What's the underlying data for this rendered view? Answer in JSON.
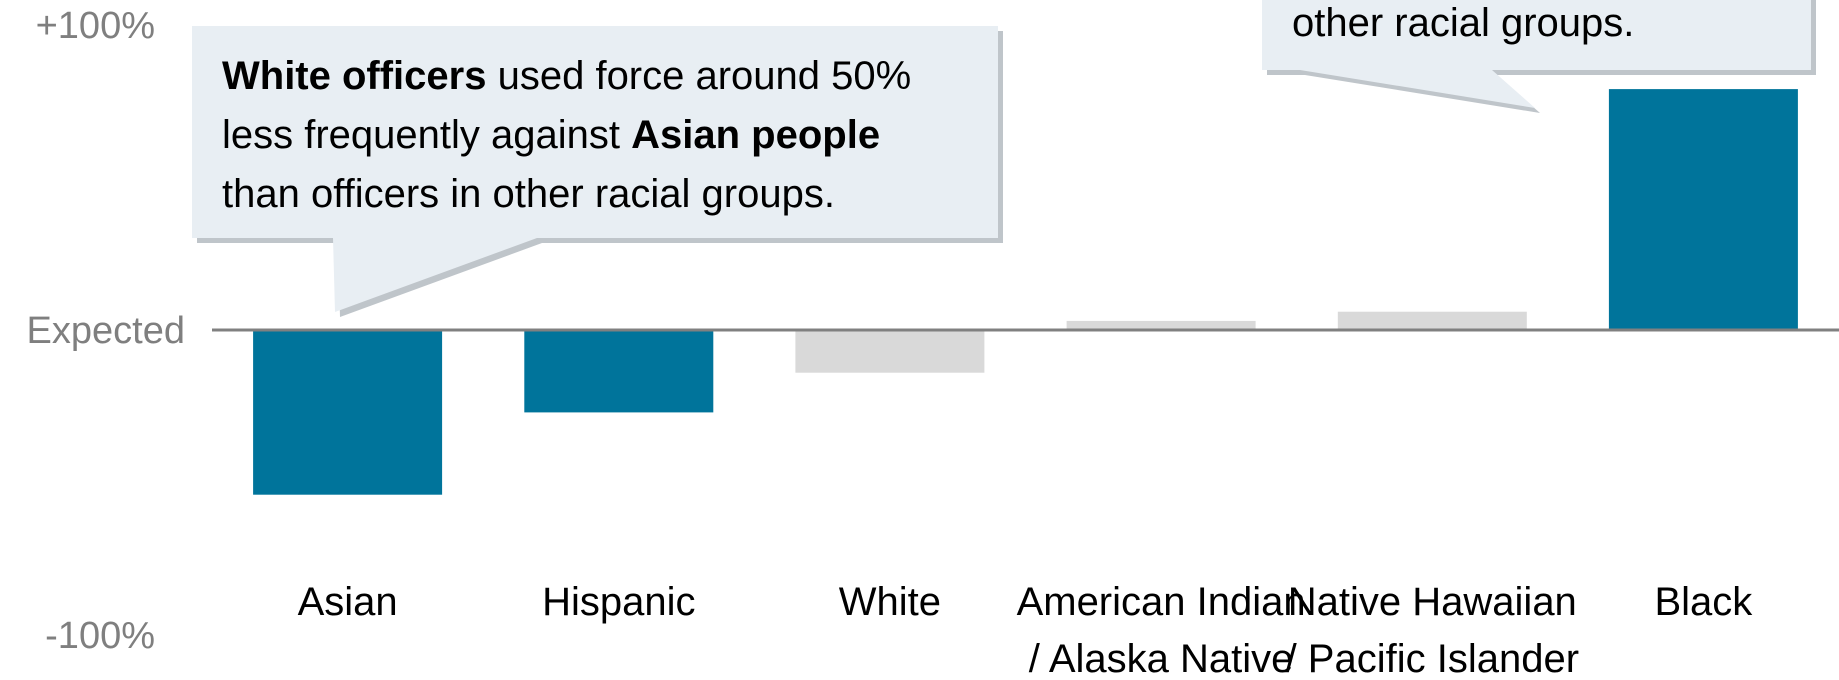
{
  "colors": {
    "highlight": "#00749b",
    "muted": "#d9d9d9",
    "baseline": "#808080",
    "callout_fill": "#e8eef3"
  },
  "chart_data": {
    "type": "bar",
    "ylim": [
      -100,
      100
    ],
    "baseline_label": "Expected",
    "y_ticks": [
      {
        "value": 100,
        "label": "+100%"
      },
      {
        "value": -100,
        "label": "-100%"
      }
    ],
    "categories": [
      [
        "Asian"
      ],
      [
        "Hispanic"
      ],
      [
        "White"
      ],
      [
        "American Indian",
        "/ Alaska Native"
      ],
      [
        "Native Hawaiian",
        "/ Pacific Islander"
      ],
      [
        "Black"
      ]
    ],
    "values": [
      -54,
      -27,
      -14,
      3,
      6,
      79
    ],
    "highlighted": [
      true,
      true,
      false,
      false,
      false,
      true
    ],
    "annotations": [
      {
        "lines": [
          [
            {
              "text": "White officers",
              "bold": true
            },
            {
              "text": " used force around 50%",
              "bold": false
            }
          ],
          [
            {
              "text": "less frequently against ",
              "bold": false
            },
            {
              "text": "Asian people",
              "bold": true
            }
          ],
          [
            {
              "text": "than officers in other racial groups.",
              "bold": false
            }
          ]
        ],
        "points_to": "Asian"
      },
      {
        "lines": [
          [
            {
              "text": "other racial groups.",
              "bold": false
            }
          ]
        ],
        "points_to": "Black"
      }
    ]
  }
}
